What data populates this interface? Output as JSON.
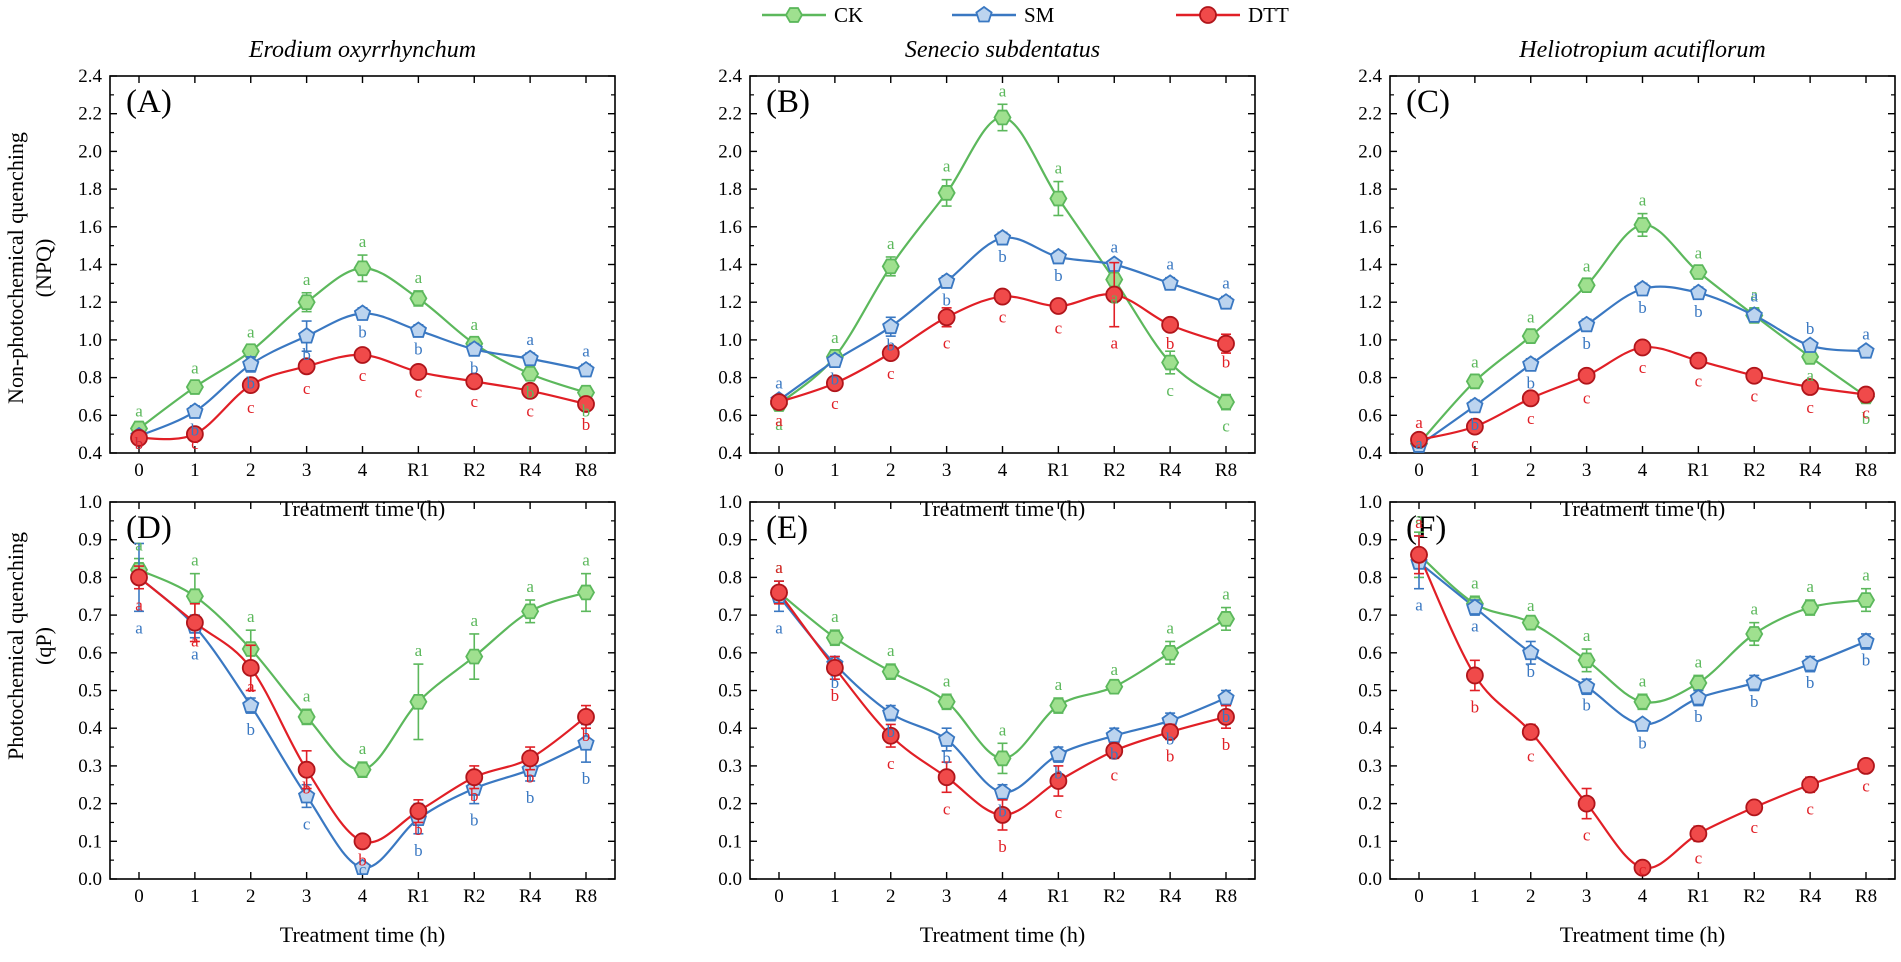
{
  "legend": [
    {
      "key": "CK",
      "label": "CK",
      "color": "#5cb85c",
      "fill": "#9fe08f",
      "marker": "hexagon"
    },
    {
      "key": "SM",
      "label": "SM",
      "color": "#3a78c2",
      "fill": "#bcd4ef",
      "marker": "pentagon"
    },
    {
      "key": "DTT",
      "label": "DTT",
      "color": "#e11f26",
      "fill": "#f04a4a",
      "marker": "circle"
    }
  ],
  "species": [
    "Erodium oxyrrhynchum",
    "Senecio subdentatus",
    "Heliotropium acutiflorum"
  ],
  "axis_titles": {
    "npq": [
      "Non-photochemical quenching",
      "(NPQ)"
    ],
    "qp": [
      "Photochemical quenching",
      "(qP)"
    ],
    "x": "Treatment time (h)"
  },
  "chart_data": [
    {
      "panel": "(A)",
      "type": "line",
      "species": "Erodium oxyrrhynchum",
      "metric": "npq",
      "title": "",
      "xlabel": "Treatment time (h)",
      "ylabel": "Non-photochemical quenching (NPQ)",
      "categories": [
        "0",
        "1",
        "2",
        "3",
        "4",
        "R1",
        "R2",
        "R4",
        "R8"
      ],
      "ylim": [
        0.4,
        2.4
      ],
      "yticks": [
        "0.4",
        "0.6",
        "0.8",
        "1.0",
        "1.2",
        "1.4",
        "1.6",
        "1.8",
        "2.0",
        "2.2",
        "2.4"
      ],
      "series": [
        {
          "name": "CK",
          "values": [
            0.53,
            0.75,
            0.94,
            1.2,
            1.38,
            1.22,
            0.98,
            0.82,
            0.72
          ],
          "errors": [
            0.02,
            0.03,
            0.03,
            0.05,
            0.07,
            0.04,
            0.03,
            0.03,
            0.03
          ],
          "letters": [
            "a",
            "a",
            "a",
            "a",
            "a",
            "a",
            "a",
            "b",
            "b"
          ]
        },
        {
          "name": "SM",
          "values": [
            0.49,
            0.62,
            0.87,
            1.02,
            1.14,
            1.05,
            0.95,
            0.9,
            0.84
          ],
          "errors": [
            0.02,
            0.03,
            0.04,
            0.08,
            0.03,
            0.03,
            0.03,
            0.03,
            0.03
          ],
          "letters": [
            "b",
            "b",
            "b",
            "b",
            "b",
            "b",
            "b",
            "a",
            "a"
          ]
        },
        {
          "name": "DTT",
          "values": [
            0.48,
            0.5,
            0.76,
            0.86,
            0.92,
            0.83,
            0.78,
            0.73,
            0.66
          ],
          "errors": [
            0.02,
            0.02,
            0.03,
            0.03,
            0.02,
            0.02,
            0.02,
            0.02,
            0.02
          ],
          "letters": [
            "b",
            "c",
            "c",
            "c",
            "c",
            "c",
            "c",
            "c",
            "b"
          ]
        }
      ]
    },
    {
      "panel": "(B)",
      "type": "line",
      "species": "Senecio subdentatus",
      "metric": "npq",
      "title": "",
      "xlabel": "Treatment time (h)",
      "ylabel": "Non-photochemical quenching (NPQ)",
      "categories": [
        "0",
        "1",
        "2",
        "3",
        "4",
        "R1",
        "R2",
        "R4",
        "R8"
      ],
      "ylim": [
        0.4,
        2.4
      ],
      "yticks": [
        "0.4",
        "0.6",
        "0.8",
        "1.0",
        "1.2",
        "1.4",
        "1.6",
        "1.8",
        "2.0",
        "2.2",
        "2.4"
      ],
      "series": [
        {
          "name": "CK",
          "values": [
            0.66,
            0.91,
            1.39,
            1.78,
            2.18,
            1.75,
            1.32,
            0.88,
            0.67
          ],
          "errors": [
            0.02,
            0.03,
            0.05,
            0.07,
            0.07,
            0.09,
            0.06,
            0.06,
            0.04
          ],
          "letters": [
            "a",
            "a",
            "a",
            "a",
            "a",
            "a",
            "a",
            "c",
            "c"
          ]
        },
        {
          "name": "SM",
          "values": [
            0.68,
            0.89,
            1.07,
            1.31,
            1.54,
            1.44,
            1.4,
            1.3,
            1.2
          ],
          "errors": [
            0.02,
            0.03,
            0.05,
            0.03,
            0.03,
            0.03,
            0.02,
            0.03,
            0.03
          ],
          "letters": [
            "a",
            "b",
            "b",
            "b",
            "b",
            "b",
            "a",
            "a",
            "a"
          ]
        },
        {
          "name": "DTT",
          "values": [
            0.67,
            0.77,
            0.93,
            1.12,
            1.23,
            1.18,
            1.24,
            1.08,
            0.98
          ],
          "errors": [
            0.02,
            0.02,
            0.02,
            0.05,
            0.02,
            0.03,
            0.17,
            0.03,
            0.05
          ],
          "letters": [
            "a",
            "c",
            "c",
            "c",
            "c",
            "c",
            "a",
            "b",
            "b"
          ]
        }
      ]
    },
    {
      "panel": "(C)",
      "type": "line",
      "species": "Heliotropium acutiflorum",
      "metric": "npq",
      "title": "",
      "xlabel": "Treatment time (h)",
      "ylabel": "Non-photochemical quenching (NPQ)",
      "categories": [
        "0",
        "1",
        "2",
        "3",
        "4",
        "R1",
        "R2",
        "R4",
        "R8"
      ],
      "ylim": [
        0.4,
        2.4
      ],
      "yticks": [
        "0.4",
        "0.6",
        "0.8",
        "1.0",
        "1.2",
        "1.4",
        "1.6",
        "1.8",
        "2.0",
        "2.2",
        "2.4"
      ],
      "series": [
        {
          "name": "CK",
          "values": [
            0.45,
            0.78,
            1.02,
            1.29,
            1.61,
            1.36,
            1.13,
            0.91,
            0.7
          ],
          "errors": [
            0.02,
            0.03,
            0.03,
            0.03,
            0.06,
            0.03,
            0.04,
            0.03,
            0.03
          ],
          "letters": [
            "a",
            "a",
            "a",
            "a",
            "a",
            "a",
            "a",
            "a",
            "b"
          ]
        },
        {
          "name": "SM",
          "values": [
            0.44,
            0.65,
            0.87,
            1.08,
            1.27,
            1.25,
            1.13,
            0.97,
            0.94
          ],
          "errors": [
            0.02,
            0.03,
            0.03,
            0.03,
            0.03,
            0.03,
            0.03,
            0.02,
            0.02
          ],
          "letters": [
            "a",
            "b",
            "b",
            "b",
            "b",
            "b",
            "a",
            "b",
            "a"
          ]
        },
        {
          "name": "DTT",
          "values": [
            0.47,
            0.54,
            0.69,
            0.81,
            0.96,
            0.89,
            0.81,
            0.75,
            0.71
          ],
          "errors": [
            0.02,
            0.03,
            0.02,
            0.03,
            0.02,
            0.02,
            0.02,
            0.02,
            0.02
          ],
          "letters": [
            "a",
            "c",
            "c",
            "c",
            "c",
            "c",
            "c",
            "c",
            "c"
          ]
        }
      ]
    },
    {
      "panel": "(D)",
      "type": "line",
      "species": "Erodium oxyrrhynchum",
      "metric": "qp",
      "title": "",
      "xlabel": "Treatment time (h)",
      "ylabel": "Photochemical quenching (qP)",
      "categories": [
        "0",
        "1",
        "2",
        "3",
        "4",
        "R1",
        "R2",
        "R4",
        "R8"
      ],
      "ylim": [
        0.0,
        1.0
      ],
      "yticks": [
        "0.0",
        "0.1",
        "0.2",
        "0.3",
        "0.4",
        "0.5",
        "0.6",
        "0.7",
        "0.8",
        "0.9",
        "1.0"
      ],
      "series": [
        {
          "name": "CK",
          "values": [
            0.82,
            0.75,
            0.61,
            0.43,
            0.29,
            0.47,
            0.59,
            0.71,
            0.76
          ],
          "errors": [
            0.03,
            0.06,
            0.05,
            0.02,
            0.02,
            0.1,
            0.06,
            0.03,
            0.05
          ],
          "letters": [
            "a",
            "a",
            "a",
            "a",
            "a",
            "a",
            "a",
            "a",
            "a"
          ]
        },
        {
          "name": "SM",
          "values": [
            0.8,
            0.67,
            0.46,
            0.22,
            0.03,
            0.16,
            0.24,
            0.29,
            0.36
          ],
          "errors": [
            0.09,
            0.03,
            0.02,
            0.03,
            0.01,
            0.04,
            0.04,
            0.03,
            0.05
          ],
          "letters": [
            "a",
            "a",
            "b",
            "c",
            "c",
            "b",
            "b",
            "b",
            "b"
          ]
        },
        {
          "name": "DTT",
          "values": [
            0.8,
            0.68,
            0.56,
            0.29,
            0.1,
            0.18,
            0.27,
            0.32,
            0.43
          ],
          "errors": [
            0.03,
            0.05,
            0.06,
            0.05,
            0.01,
            0.03,
            0.03,
            0.03,
            0.03
          ],
          "letters": [
            "a",
            "a",
            "a",
            "b",
            "b",
            "b",
            "b",
            "b",
            "b"
          ]
        }
      ]
    },
    {
      "panel": "(E)",
      "type": "line",
      "species": "Senecio subdentatus",
      "metric": "qp",
      "title": "",
      "xlabel": "Treatment time (h)",
      "ylabel": "Photochemical quenching (qP)",
      "categories": [
        "0",
        "1",
        "2",
        "3",
        "4",
        "R1",
        "R2",
        "R4",
        "R8"
      ],
      "ylim": [
        0.0,
        1.0
      ],
      "yticks": [
        "0.0",
        "0.1",
        "0.2",
        "0.3",
        "0.4",
        "0.5",
        "0.6",
        "0.7",
        "0.8",
        "0.9",
        "1.0"
      ],
      "series": [
        {
          "name": "CK",
          "values": [
            0.76,
            0.64,
            0.55,
            0.47,
            0.32,
            0.46,
            0.51,
            0.6,
            0.69
          ],
          "errors": [
            0.03,
            0.02,
            0.02,
            0.02,
            0.04,
            0.02,
            0.01,
            0.03,
            0.03
          ],
          "letters": [
            "a",
            "a",
            "a",
            "a",
            "a",
            "a",
            "a",
            "a",
            "a"
          ]
        },
        {
          "name": "SM",
          "values": [
            0.75,
            0.57,
            0.44,
            0.37,
            0.23,
            0.33,
            0.38,
            0.42,
            0.48
          ],
          "errors": [
            0.04,
            0.02,
            0.02,
            0.03,
            0.02,
            0.02,
            0.02,
            0.02,
            0.02
          ],
          "letters": [
            "a",
            "b",
            "b",
            "b",
            "b",
            "b",
            "b",
            "b",
            "b"
          ]
        },
        {
          "name": "DTT",
          "values": [
            0.76,
            0.56,
            0.38,
            0.27,
            0.17,
            0.26,
            0.34,
            0.39,
            0.43
          ],
          "errors": [
            0.03,
            0.03,
            0.03,
            0.04,
            0.04,
            0.04,
            0.02,
            0.02,
            0.03
          ],
          "letters": [
            "a",
            "b",
            "c",
            "c",
            "b",
            "c",
            "c",
            "b",
            "b"
          ]
        }
      ]
    },
    {
      "panel": "(F)",
      "type": "line",
      "species": "Heliotropium acutiflorum",
      "metric": "qp",
      "title": "",
      "xlabel": "Treatment time (h)",
      "ylabel": "Photochemical quenching (qP)",
      "categories": [
        "0",
        "1",
        "2",
        "3",
        "4",
        "R1",
        "R2",
        "R4",
        "R8"
      ],
      "ylim": [
        0.0,
        1.0
      ],
      "yticks": [
        "0.0",
        "0.1",
        "0.2",
        "0.3",
        "0.4",
        "0.5",
        "0.6",
        "0.7",
        "0.8",
        "0.9",
        "1.0"
      ],
      "series": [
        {
          "name": "CK",
          "values": [
            0.86,
            0.73,
            0.68,
            0.58,
            0.47,
            0.52,
            0.65,
            0.72,
            0.74
          ],
          "errors": [
            0.06,
            0.02,
            0.01,
            0.03,
            0.02,
            0.02,
            0.03,
            0.02,
            0.03
          ],
          "letters": [
            "a",
            "a",
            "a",
            "a",
            "a",
            "a",
            "a",
            "a",
            "a"
          ]
        },
        {
          "name": "SM",
          "values": [
            0.84,
            0.72,
            0.6,
            0.51,
            0.41,
            0.48,
            0.52,
            0.57,
            0.63
          ],
          "errors": [
            0.07,
            0.02,
            0.03,
            0.02,
            0.01,
            0.02,
            0.02,
            0.02,
            0.02
          ],
          "letters": [
            "a",
            "a",
            "b",
            "b",
            "b",
            "b",
            "b",
            "b",
            "b"
          ]
        },
        {
          "name": "DTT",
          "values": [
            0.86,
            0.54,
            0.39,
            0.2,
            0.03,
            0.12,
            0.19,
            0.25,
            0.3
          ],
          "errors": [
            0.05,
            0.04,
            0.02,
            0.04,
            0.01,
            0.02,
            0.01,
            0.02,
            0.01
          ],
          "letters": [
            "a",
            "b",
            "c",
            "c",
            "c",
            "c",
            "c",
            "c",
            "c"
          ]
        }
      ]
    }
  ]
}
